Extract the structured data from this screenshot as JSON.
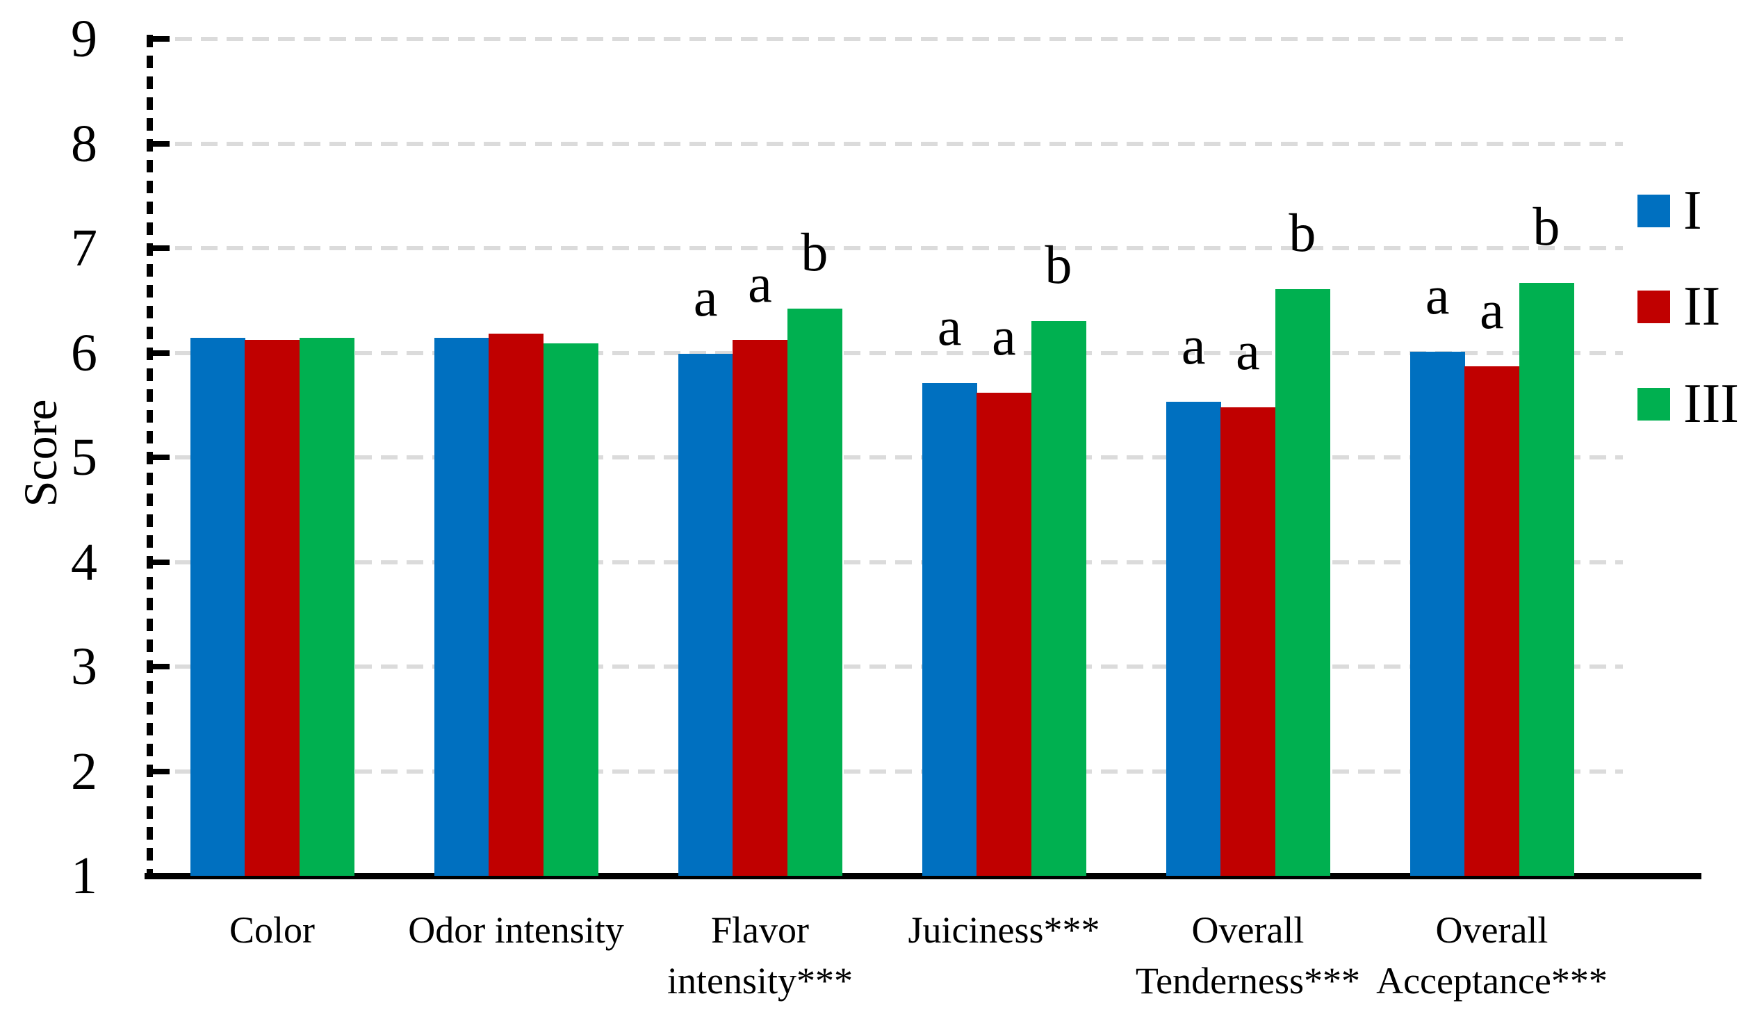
{
  "figure": {
    "background": "#ffffff"
  },
  "chart_data": {
    "type": "bar",
    "title": "",
    "xlabel": "",
    "ylabel": "Score",
    "ylim": [
      1,
      9
    ],
    "yticks": [
      "1",
      "2",
      "3",
      "4",
      "5",
      "6",
      "7",
      "8",
      "9"
    ],
    "grid": "horizontal dashed gray lines, dashed black y-axis, solid black x-axis",
    "legend_position": "right",
    "categories": [
      "Color",
      "Odor intensity",
      "Flavor intensity***",
      "Juiciness***",
      "Overall Tenderness***",
      "Overall Acceptance***"
    ],
    "category_label_lines": [
      [
        "Color"
      ],
      [
        "Odor intensity"
      ],
      [
        "Flavor",
        "intensity***"
      ],
      [
        "Juiciness***"
      ],
      [
        "Overall",
        "Tenderness***"
      ],
      [
        "Overall",
        "Acceptance***"
      ]
    ],
    "series": [
      {
        "name": "I",
        "color": "#0070C0",
        "values": [
          6.14,
          6.14,
          5.99,
          5.71,
          5.53,
          6.01
        ]
      },
      {
        "name": "II",
        "color": "#C00000",
        "values": [
          6.12,
          6.18,
          6.12,
          5.62,
          5.48,
          5.87
        ]
      },
      {
        "name": "III",
        "color": "#00B050",
        "values": [
          6.14,
          6.09,
          6.42,
          6.3,
          6.61,
          6.67
        ]
      }
    ],
    "significance_letters": [
      [
        "",
        "",
        ""
      ],
      [
        "",
        "",
        ""
      ],
      [
        "a",
        "a",
        "b"
      ],
      [
        "a",
        "a",
        "b"
      ],
      [
        "a",
        "a",
        "b"
      ],
      [
        "a",
        "a",
        "b"
      ]
    ],
    "colors": {
      "grid": "#DBDBDB",
      "axis": "#000000",
      "text": "#000000",
      "background": "#FFFFFF"
    }
  }
}
